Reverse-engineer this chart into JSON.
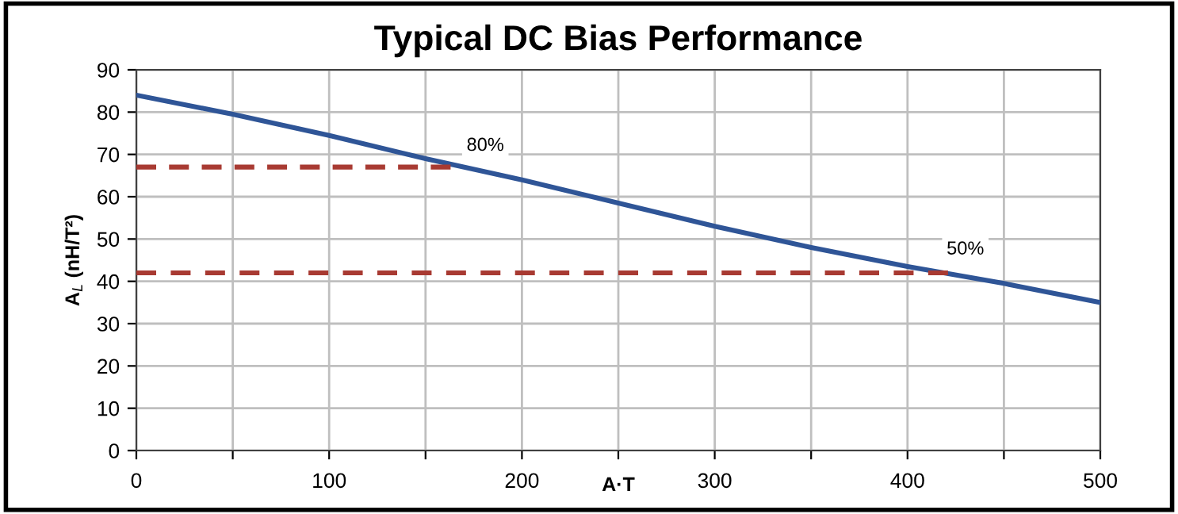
{
  "chart_data": {
    "type": "line",
    "title": "Typical DC Bias Performance",
    "xlabel": "A·T",
    "ylabel": "A$_{L}$ (nH/T²)",
    "series": [
      {
        "color": "#2f5597",
        "x": [
          0,
          50,
          100,
          150,
          200,
          250,
          300,
          350,
          400,
          450,
          500
        ],
        "values": [
          84,
          79.5,
          74.5,
          69,
          64,
          58.5,
          53,
          48,
          43.5,
          39.5,
          35
        ]
      },
      {
        "color": "#a83a32",
        "line_style": "dashed",
        "x": [
          0,
          163
        ],
        "values": [
          67,
          67
        ]
      },
      {
        "color": "#a83a32",
        "line_style": "dashed",
        "x": [
          0,
          421
        ],
        "values": [
          42,
          42
        ]
      }
    ],
    "annotations": [
      {
        "text": "80%",
        "x": 181,
        "y": 72
      },
      {
        "text": "50%",
        "x": 430,
        "y": 47.5
      }
    ],
    "xlim": [
      0,
      500
    ],
    "ylim": [
      0,
      90
    ],
    "xticks": [
      0,
      {
        "value": 50,
        "label": null
      },
      100,
      {
        "value": 150,
        "label": null
      },
      200,
      {
        "value": 250,
        "label": null
      },
      300,
      {
        "value": 350,
        "label": null
      },
      400,
      {
        "value": 450,
        "label": null
      },
      500
    ],
    "yticks": [
      0,
      10,
      20,
      30,
      40,
      50,
      60,
      70,
      80,
      90
    ],
    "grid": true,
    "marker": "none",
    "line_style": "solid"
  }
}
